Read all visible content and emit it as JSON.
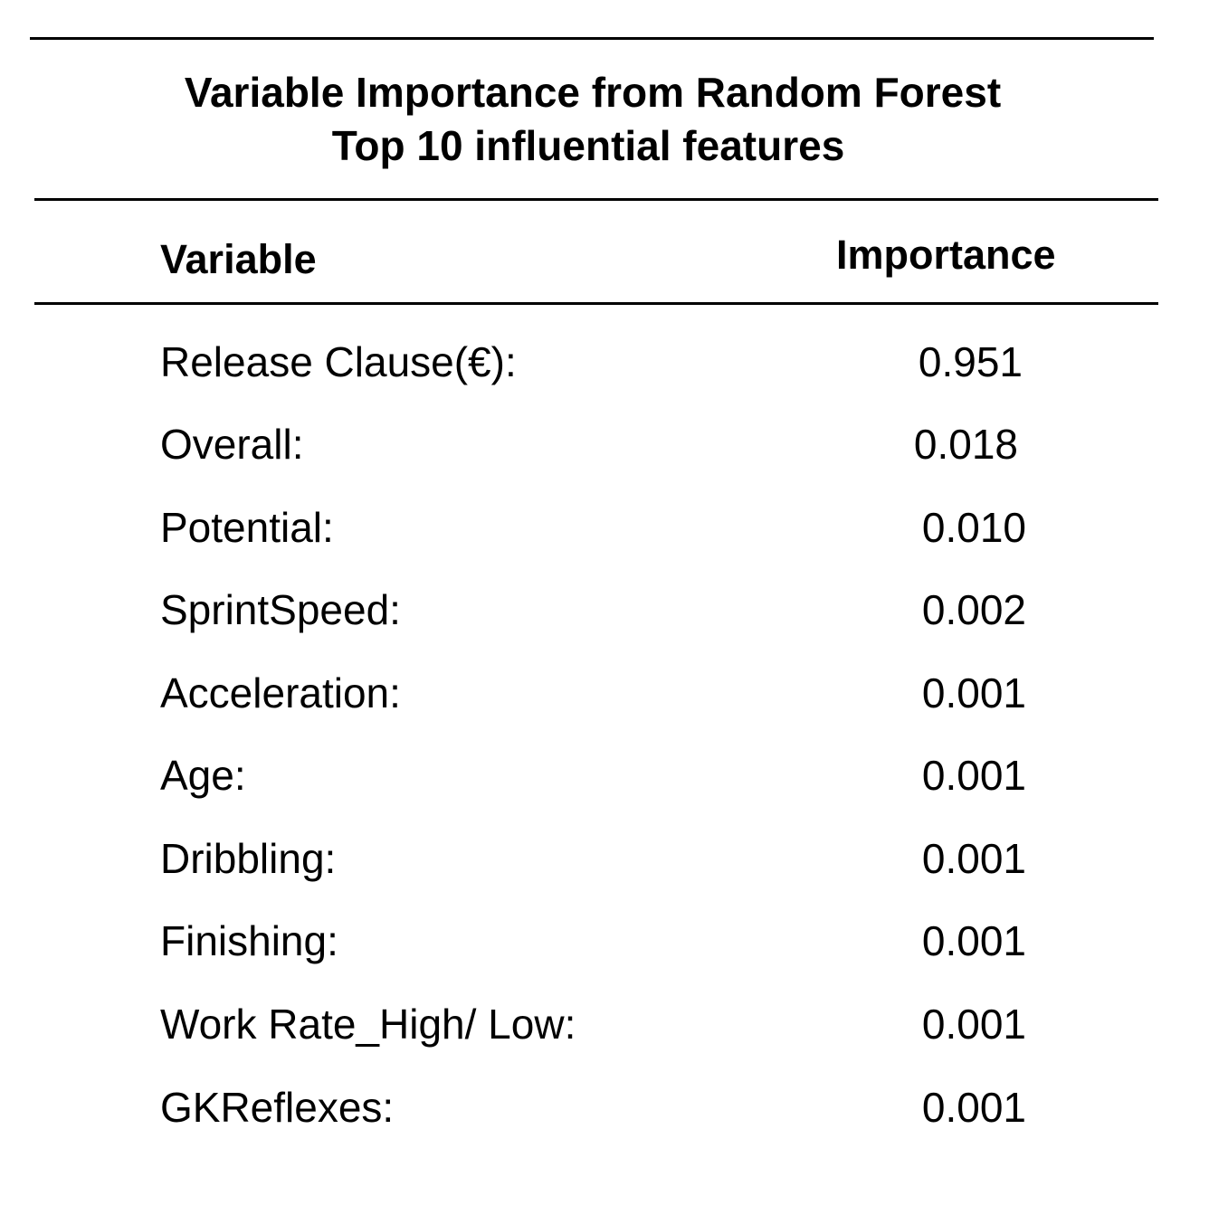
{
  "table": {
    "title_line1": "Variable Importance from Random Forest",
    "title_line2": "Top 10 influential features",
    "headers": {
      "variable": "Variable",
      "importance": "Importance"
    },
    "rows": [
      {
        "variable": "Release Clause(€):",
        "importance": "0.951"
      },
      {
        "variable": "Overall:",
        "importance": "0.018"
      },
      {
        "variable": "Potential:",
        "importance": "0.010"
      },
      {
        "variable": "SprintSpeed:",
        "importance": "0.002"
      },
      {
        "variable": "Acceleration:",
        "importance": "0.001"
      },
      {
        "variable": "Age:",
        "importance": "0.001"
      },
      {
        "variable": "Dribbling:",
        "importance": "0.001"
      },
      {
        "variable": "Finishing:",
        "importance": "0.001"
      },
      {
        "variable": "Work Rate_High/ Low:",
        "importance": "0.001"
      },
      {
        "variable": "GKReflexes:",
        "importance": "0.001"
      }
    ]
  }
}
